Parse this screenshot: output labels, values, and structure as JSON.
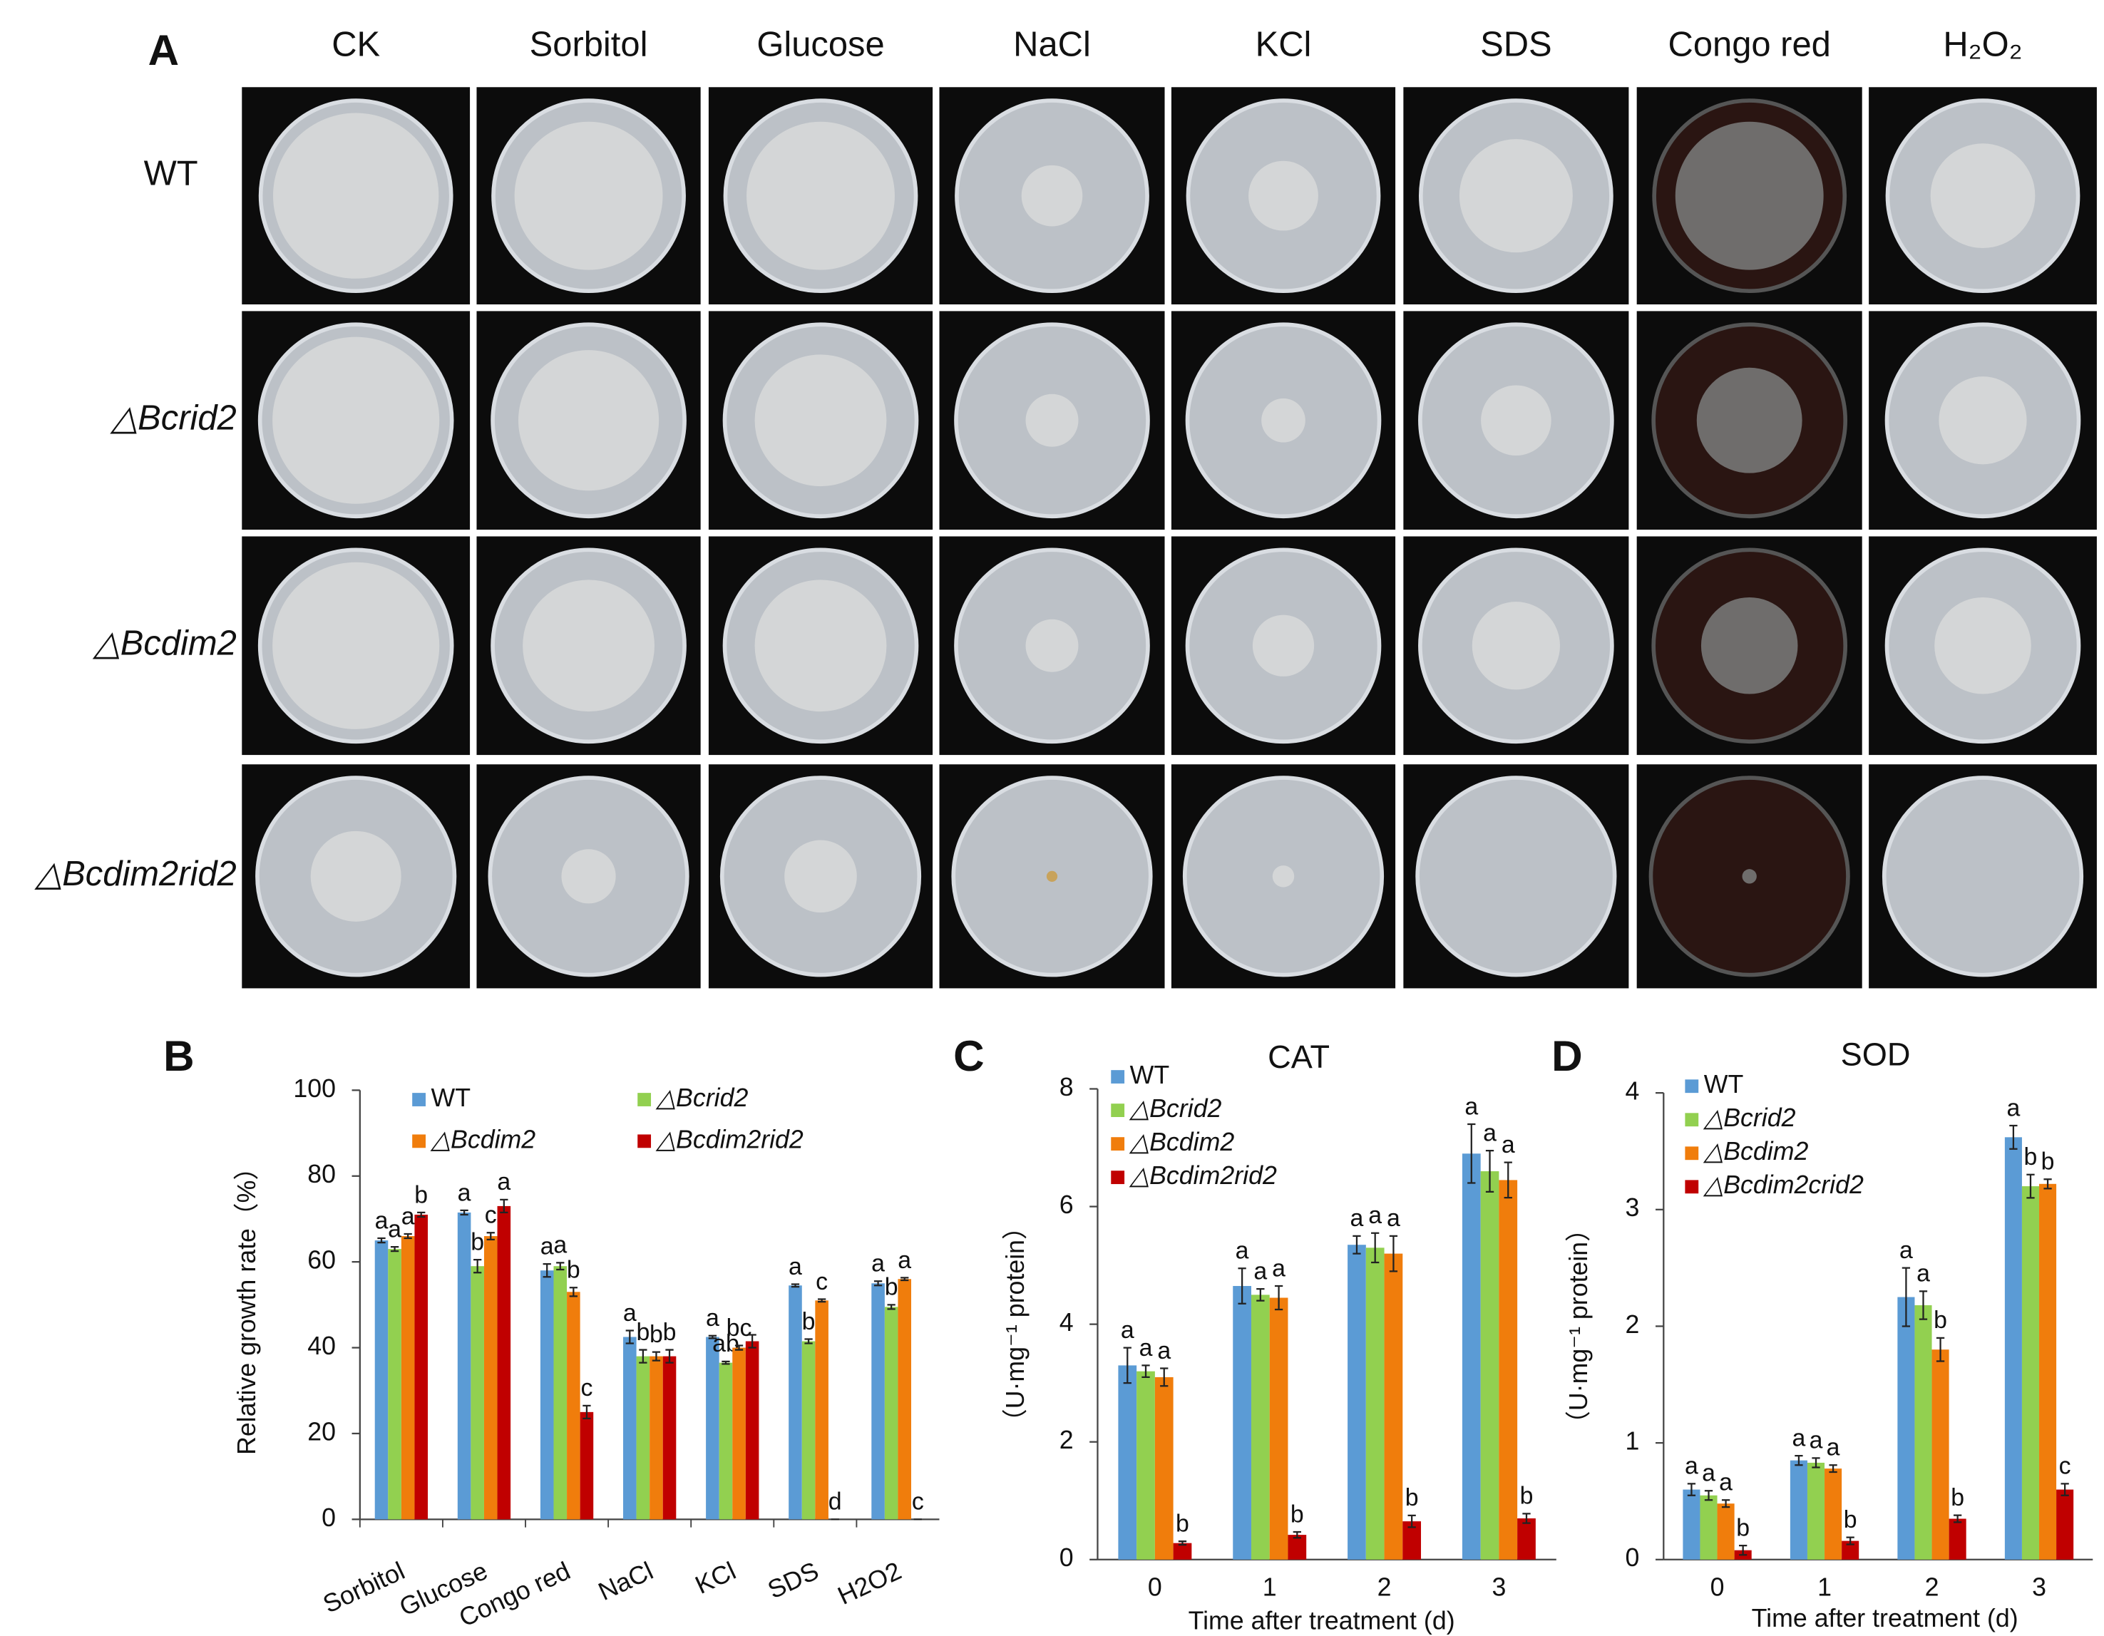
{
  "panel_a": {
    "label": "A",
    "columns": [
      "CK",
      "Sorbitol",
      "Glucose",
      "NaCl",
      "KCl",
      "SDS",
      "Congo red",
      "H₂O₂"
    ],
    "rows": [
      "WT",
      "△Bcrid2",
      "△Bcdim2",
      "△Bcdim2rid2"
    ]
  },
  "chart_data": [
    {
      "type": "bar",
      "panel": "B",
      "ylabel": "Relative growth rate（%）",
      "categories": [
        "Sorbitol",
        "Glucose",
        "Congo red",
        "NaCl",
        "KCl",
        "SDS",
        "H2O2"
      ],
      "ylim": [
        0,
        100
      ],
      "yticks": [
        0,
        20,
        40,
        60,
        80,
        100
      ],
      "series": [
        {
          "name": "WT",
          "color": "#5b9bd5",
          "values": [
            65,
            71.5,
            58,
            42.5,
            42.5,
            54.5,
            55
          ],
          "errors": [
            0.5,
            0.5,
            1.5,
            1.5,
            0.3,
            0.3,
            0.5
          ],
          "letters": [
            "a",
            "a",
            "a",
            "a",
            "a",
            "a",
            "a"
          ]
        },
        {
          "name": "△Bcrid2",
          "color": "#92d050",
          "values": [
            63,
            59,
            59,
            38,
            36.5,
            41.5,
            49.5
          ],
          "errors": [
            0.5,
            1.5,
            0.8,
            1.5,
            0.3,
            0.5,
            0.5
          ],
          "letters": [
            "a",
            "b",
            "a",
            "b",
            "ab",
            "b",
            "b"
          ]
        },
        {
          "name": "△Bcdim2",
          "color": "#f07d0c",
          "values": [
            66,
            66,
            53,
            38,
            40,
            51,
            56
          ],
          "errors": [
            0.5,
            0.8,
            1,
            1,
            0.5,
            0.3,
            0.3
          ],
          "letters": [
            "a",
            "c",
            "b",
            "b",
            "bc",
            "c",
            "a"
          ]
        },
        {
          "name": "△Bcdim2rid2",
          "color": "#c00000",
          "values": [
            71,
            73,
            25,
            38,
            41.5,
            0,
            0
          ],
          "errors": [
            0.5,
            1.5,
            1.5,
            1.5,
            1.5,
            0,
            0
          ],
          "letters": [
            "b",
            "a",
            "c",
            "b",
            null,
            "d",
            "c"
          ]
        }
      ]
    },
    {
      "type": "bar",
      "panel": "C",
      "title": "CAT",
      "ylabel": "（U·mg⁻¹ protein）",
      "xlabel": "Time after treatment (d)",
      "categories": [
        "0",
        "1",
        "2",
        "3"
      ],
      "ylim": [
        0,
        8
      ],
      "yticks": [
        0,
        2,
        4,
        6,
        8
      ],
      "series": [
        {
          "name": "WT",
          "color": "#5b9bd5",
          "values": [
            3.3,
            4.65,
            5.35,
            6.9
          ],
          "errors": [
            0.3,
            0.3,
            0.15,
            0.5
          ],
          "letters": [
            "a",
            "a",
            "a",
            "a"
          ]
        },
        {
          "name": "△Bcrid2",
          "color": "#92d050",
          "values": [
            3.2,
            4.5,
            5.3,
            6.6
          ],
          "errors": [
            0.1,
            0.1,
            0.25,
            0.35
          ],
          "letters": [
            "a",
            "a",
            "a",
            "a"
          ]
        },
        {
          "name": "△Bcdim2",
          "color": "#f07d0c",
          "values": [
            3.1,
            4.45,
            5.2,
            6.45
          ],
          "errors": [
            0.15,
            0.2,
            0.3,
            0.3
          ],
          "letters": [
            "a",
            "a",
            "a",
            "a"
          ]
        },
        {
          "name": "△Bcdim2rid2",
          "color": "#c00000",
          "values": [
            0.28,
            0.42,
            0.65,
            0.7
          ],
          "errors": [
            0.03,
            0.05,
            0.1,
            0.08
          ],
          "letters": [
            "b",
            "b",
            "b",
            "b"
          ]
        }
      ]
    },
    {
      "type": "bar",
      "panel": "D",
      "title": "SOD",
      "ylabel": "（U·mg⁻¹ protein）",
      "xlabel": "Time after treatment (d)",
      "categories": [
        "0",
        "1",
        "2",
        "3"
      ],
      "ylim": [
        0,
        4
      ],
      "yticks": [
        0,
        1,
        2,
        3,
        4
      ],
      "series": [
        {
          "name": "WT",
          "color": "#5b9bd5",
          "values": [
            0.6,
            0.85,
            2.25,
            3.62
          ],
          "errors": [
            0.05,
            0.04,
            0.25,
            0.1
          ],
          "letters": [
            "a",
            "a",
            "a",
            "a"
          ]
        },
        {
          "name": "△Bcrid2",
          "color": "#92d050",
          "values": [
            0.55,
            0.83,
            2.18,
            3.2
          ],
          "errors": [
            0.04,
            0.04,
            0.12,
            0.1
          ],
          "letters": [
            "a",
            "a",
            "a",
            "b"
          ]
        },
        {
          "name": "△Bcdim2",
          "color": "#f07d0c",
          "values": [
            0.48,
            0.78,
            1.8,
            3.22
          ],
          "errors": [
            0.03,
            0.03,
            0.1,
            0.04
          ],
          "letters": [
            "a",
            "a",
            "b",
            "b"
          ]
        },
        {
          "name": "△Bcdim2crid2",
          "color": "#c00000",
          "values": [
            0.08,
            0.16,
            0.35,
            0.6
          ],
          "errors": [
            0.04,
            0.03,
            0.03,
            0.05
          ],
          "letters": [
            "b",
            "b",
            "b",
            "c"
          ]
        }
      ]
    }
  ]
}
